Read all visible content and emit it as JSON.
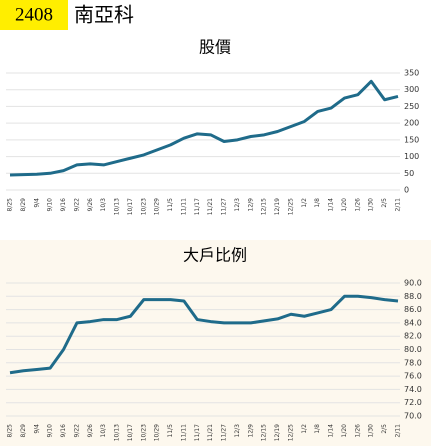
{
  "header": {
    "code": "2408",
    "name": "南亞科"
  },
  "chart_data": [
    {
      "type": "line",
      "title": "股價",
      "categories": [
        "8/25",
        "8/29",
        "9/4",
        "9/10",
        "9/16",
        "9/22",
        "9/26",
        "10/3",
        "10/13",
        "10/17",
        "10/23",
        "10/29",
        "11/5",
        "11/11",
        "11/17",
        "11/21",
        "11/27",
        "12/3",
        "12/9",
        "12/15",
        "12/19",
        "12/25",
        "1/2",
        "1/8",
        "1/14",
        "1/20",
        "1/26",
        "1/30",
        "2/5",
        "2/11"
      ],
      "series": [
        {
          "color": "#1f6b8a",
          "values": [
            45,
            46,
            47,
            50,
            58,
            75,
            78,
            75,
            85,
            95,
            105,
            120,
            135,
            155,
            168,
            165,
            145,
            150,
            160,
            165,
            175,
            190,
            205,
            235,
            245,
            275,
            285,
            325,
            270,
            280
          ]
        }
      ],
      "ylim": [
        0,
        350
      ],
      "yticks": [
        0,
        50,
        100,
        150,
        200,
        250,
        300,
        350
      ],
      "grid": true,
      "background": "#ffffff"
    },
    {
      "type": "line",
      "title": "大戶比例",
      "categories": [
        "8/25",
        "8/29",
        "9/4",
        "9/10",
        "9/16",
        "9/22",
        "9/26",
        "10/3",
        "10/13",
        "10/17",
        "10/23",
        "10/29",
        "11/5",
        "11/11",
        "11/17",
        "11/21",
        "11/27",
        "12/3",
        "12/9",
        "12/15",
        "12/19",
        "12/25",
        "1/2",
        "1/8",
        "1/14",
        "1/20",
        "1/26",
        "1/30",
        "2/5",
        "2/11"
      ],
      "series": [
        {
          "color": "#1f6b8a",
          "values": [
            76.5,
            76.8,
            77,
            77.2,
            80,
            84,
            84.2,
            84.5,
            84.5,
            85,
            87.5,
            87.5,
            87.5,
            87.3,
            84.5,
            84.2,
            84,
            84,
            84,
            84.3,
            84.6,
            85.3,
            85,
            85.5,
            86,
            88,
            88,
            87.8,
            87.5,
            87.3
          ]
        }
      ],
      "ylim": [
        70,
        90
      ],
      "yticks": [
        {
          "value": 70,
          "label": "70.0"
        },
        {
          "value": 72,
          "label": "72.0"
        },
        {
          "value": 74,
          "label": "74.0"
        },
        {
          "value": 76,
          "label": "76.0"
        },
        {
          "value": 78,
          "label": "78.0"
        },
        {
          "value": 80,
          "label": "80.0"
        },
        {
          "value": 82,
          "label": "82.0"
        },
        {
          "value": 84,
          "label": "84.0"
        },
        {
          "value": 86,
          "label": "86.0"
        },
        {
          "value": 88,
          "label": "88.0"
        },
        {
          "value": 90,
          "label": "90.0"
        }
      ],
      "grid": true,
      "background": "#fdf8ee"
    }
  ]
}
